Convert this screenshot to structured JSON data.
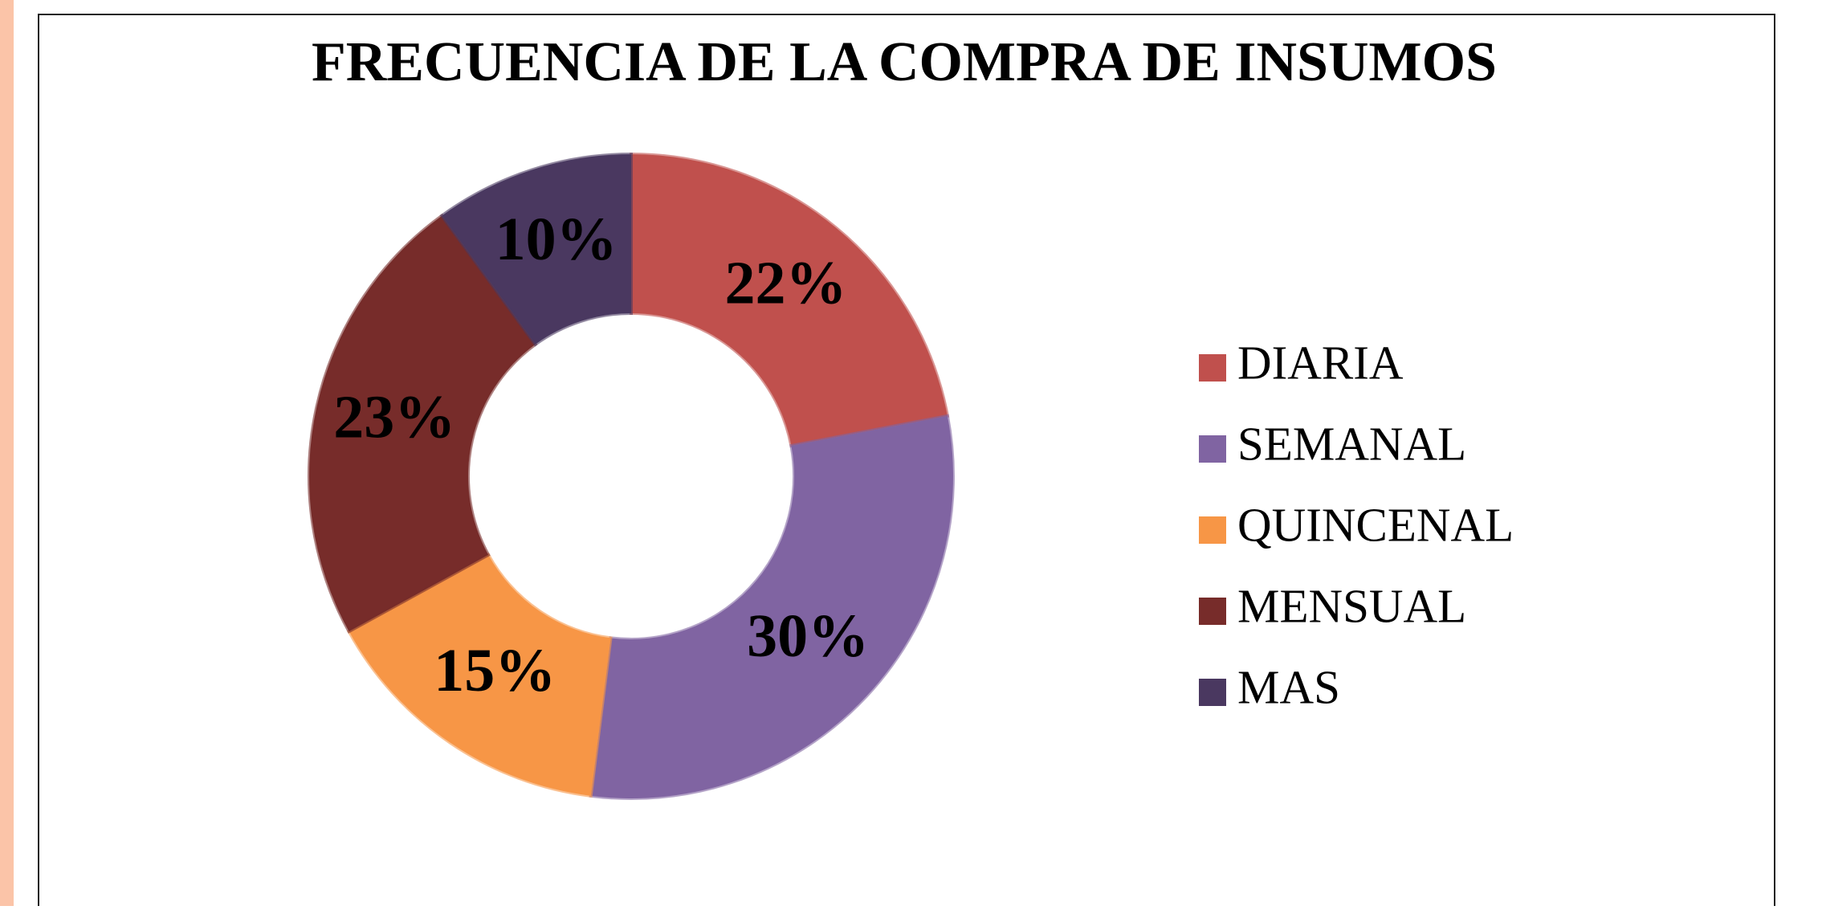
{
  "chart_data": {
    "type": "donut",
    "title": "FRECUENCIA DE LA COMPRA DE INSUMOS",
    "categories": [
      "DIARIA",
      "SEMANAL",
      "QUINCENAL",
      "MENSUAL",
      "MAS"
    ],
    "values": [
      22,
      30,
      15,
      23,
      10
    ],
    "value_labels": [
      "22%",
      "30%",
      "15%",
      "23%",
      "10%"
    ],
    "colors": [
      "#c0504d",
      "#8064a2",
      "#f79646",
      "#772c2a",
      "#4a3860"
    ],
    "legend": "right"
  }
}
